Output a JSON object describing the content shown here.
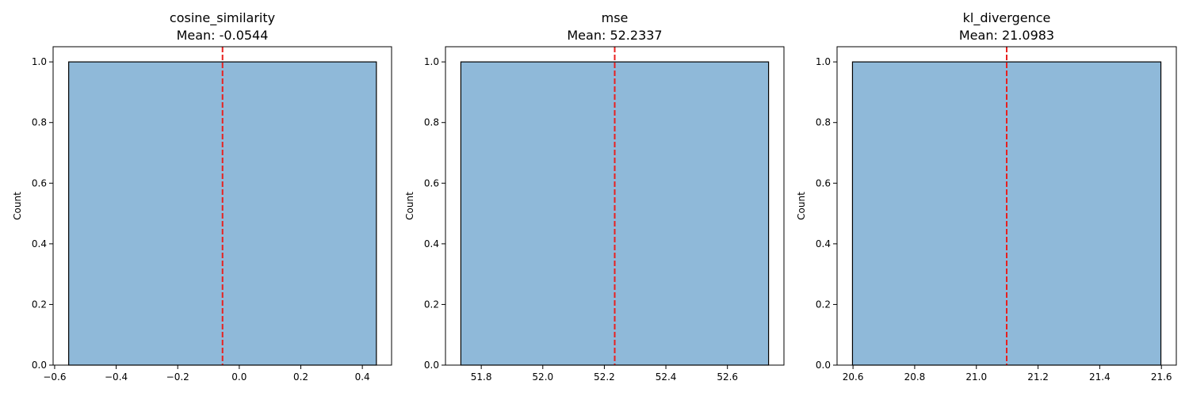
{
  "chart_data": [
    {
      "type": "bar",
      "title": "cosine_similarity",
      "subtitle": "Mean: -0.0544",
      "ylabel": "Count",
      "xlabel": "",
      "xlim": [
        -0.605,
        0.495
      ],
      "ylim": [
        0,
        1.05
      ],
      "xticks": [
        -0.6,
        -0.4,
        -0.2,
        0.0,
        0.2,
        0.4
      ],
      "xtick_labels": [
        "−0.6",
        "−0.4",
        "−0.2",
        "0.0",
        "0.2",
        "0.4"
      ],
      "yticks": [
        0.0,
        0.2,
        0.4,
        0.6,
        0.8,
        1.0
      ],
      "ytick_labels": [
        "0.0",
        "0.2",
        "0.4",
        "0.6",
        "0.8",
        "1.0"
      ],
      "bins": [
        {
          "start": -0.5544,
          "end": 0.4456,
          "count": 1
        }
      ],
      "mean": -0.0544
    },
    {
      "type": "bar",
      "title": "mse",
      "subtitle": "Mean: 52.2337",
      "ylabel": "Count",
      "xlabel": "",
      "xlim": [
        51.6837,
        52.7837
      ],
      "ylim": [
        0,
        1.05
      ],
      "xticks": [
        51.8,
        52.0,
        52.2,
        52.4,
        52.6
      ],
      "xtick_labels": [
        "51.8",
        "52.0",
        "52.2",
        "52.4",
        "52.6"
      ],
      "yticks": [
        0.0,
        0.2,
        0.4,
        0.6,
        0.8,
        1.0
      ],
      "ytick_labels": [
        "0.0",
        "0.2",
        "0.4",
        "0.6",
        "0.8",
        "1.0"
      ],
      "bins": [
        {
          "start": 51.7337,
          "end": 52.7337,
          "count": 1
        }
      ],
      "mean": 52.2337
    },
    {
      "type": "bar",
      "title": "kl_divergence",
      "subtitle": "Mean: 21.0983",
      "ylabel": "Count",
      "xlabel": "",
      "xlim": [
        20.5483,
        21.6483
      ],
      "ylim": [
        0,
        1.05
      ],
      "xticks": [
        20.6,
        20.8,
        21.0,
        21.2,
        21.4,
        21.6
      ],
      "xtick_labels": [
        "20.6",
        "20.8",
        "21.0",
        "21.2",
        "21.4",
        "21.6"
      ],
      "yticks": [
        0.0,
        0.2,
        0.4,
        0.6,
        0.8,
        1.0
      ],
      "ytick_labels": [
        "0.0",
        "0.2",
        "0.4",
        "0.6",
        "0.8",
        "1.0"
      ],
      "bins": [
        {
          "start": 20.5983,
          "end": 21.5983,
          "count": 1
        }
      ],
      "mean": 21.0983
    }
  ],
  "colors": {
    "bar_fill": "#8fb9d9",
    "bar_edge": "#000000",
    "mean_line": "#e8201f",
    "axis": "#000000"
  }
}
